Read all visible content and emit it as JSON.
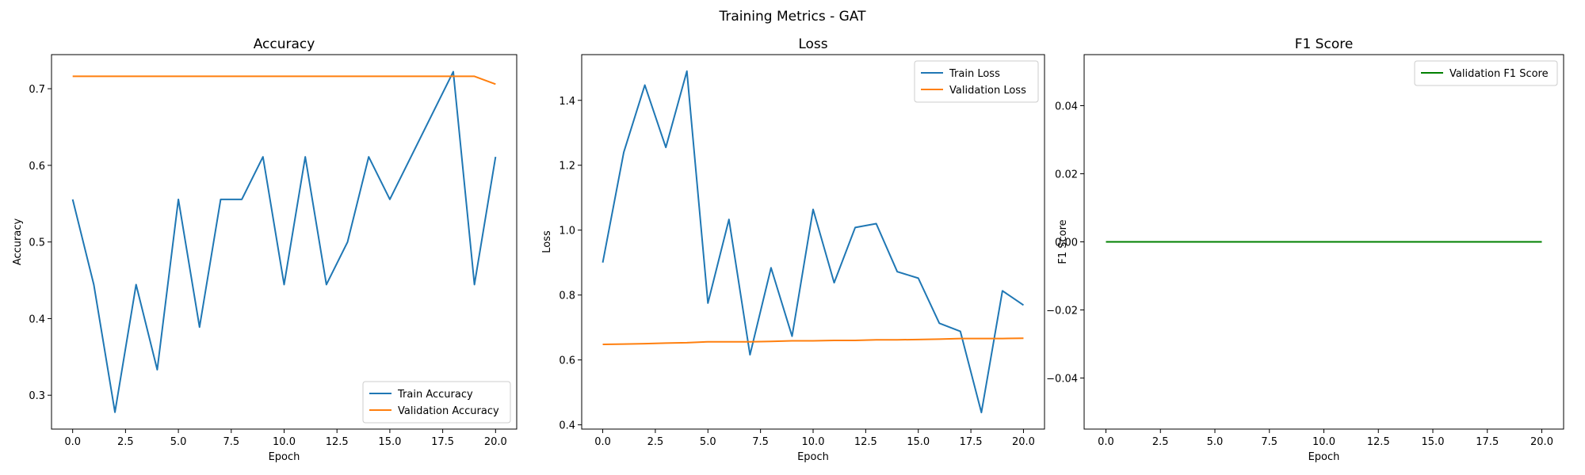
{
  "suptitle": "Training Metrics - GAT",
  "colors": {
    "train": "#1f77b4",
    "validation": "#ff7f0e",
    "f1": "#008000",
    "axes": "#000000",
    "legend_border": "#cccccc"
  },
  "chart_data": [
    {
      "type": "line",
      "title": "Accuracy",
      "xlabel": "Epoch",
      "ylabel": "Accuracy",
      "xlim": [
        -1,
        21
      ],
      "ylim": [
        0.2558,
        0.7445
      ],
      "xticks": [
        0.0,
        2.5,
        5.0,
        7.5,
        10.0,
        12.5,
        15.0,
        17.5,
        20.0
      ],
      "xtick_labels": [
        "0.0",
        "2.5",
        "5.0",
        "7.5",
        "10.0",
        "12.5",
        "15.0",
        "17.5",
        "20.0"
      ],
      "yticks": [
        0.3,
        0.4,
        0.5,
        0.6,
        0.7
      ],
      "ytick_labels": [
        "0.3",
        "0.4",
        "0.5",
        "0.6",
        "0.7"
      ],
      "grid": false,
      "legend_position": "lower right",
      "x": [
        0,
        1,
        2,
        3,
        4,
        5,
        6,
        7,
        8,
        9,
        10,
        11,
        12,
        13,
        14,
        15,
        16,
        17,
        18,
        19,
        20
      ],
      "series": [
        {
          "name": "Train Accuracy",
          "color": "#1f77b4",
          "values": [
            0.5556,
            0.4444,
            0.2778,
            0.4444,
            0.3333,
            0.5556,
            0.3889,
            0.5556,
            0.5556,
            0.6111,
            0.4444,
            0.6111,
            0.4444,
            0.5,
            0.6111,
            0.5556,
            0.6111,
            0.6667,
            0.7222,
            0.4444,
            0.6111
          ]
        },
        {
          "name": "Validation Accuracy",
          "color": "#ff7f0e",
          "values": [
            0.7162,
            0.7162,
            0.7162,
            0.7162,
            0.7162,
            0.7162,
            0.7162,
            0.7162,
            0.7162,
            0.7162,
            0.7162,
            0.7162,
            0.7162,
            0.7162,
            0.7162,
            0.7162,
            0.7162,
            0.7162,
            0.7162,
            0.7162,
            0.706
          ]
        }
      ]
    },
    {
      "type": "line",
      "title": "Loss",
      "xlabel": "Epoch",
      "ylabel": "Loss",
      "xlim": [
        -1,
        21
      ],
      "ylim": [
        0.3869,
        1.5409
      ],
      "xticks": [
        0.0,
        2.5,
        5.0,
        7.5,
        10.0,
        12.5,
        15.0,
        17.5,
        20.0
      ],
      "xtick_labels": [
        "0.0",
        "2.5",
        "5.0",
        "7.5",
        "10.0",
        "12.5",
        "15.0",
        "17.5",
        "20.0"
      ],
      "yticks": [
        0.4,
        0.6,
        0.8,
        1.0,
        1.2,
        1.4
      ],
      "ytick_labels": [
        "0.4",
        "0.6",
        "0.8",
        "1.0",
        "1.2",
        "1.4"
      ],
      "grid": false,
      "legend_position": "upper right",
      "x": [
        0,
        1,
        2,
        3,
        4,
        5,
        6,
        7,
        8,
        9,
        10,
        11,
        12,
        13,
        14,
        15,
        16,
        17,
        18,
        19,
        20
      ],
      "series": [
        {
          "name": "Train Loss",
          "color": "#1f77b4",
          "values": [
            0.9,
            1.24,
            1.447,
            1.255,
            1.49,
            0.775,
            1.033,
            0.616,
            0.884,
            0.673,
            1.064,
            0.838,
            1.008,
            1.02,
            0.872,
            0.852,
            0.713,
            0.688,
            0.438,
            0.813,
            0.769
          ]
        },
        {
          "name": "Validation Loss",
          "color": "#ff7f0e",
          "values": [
            0.648,
            0.649,
            0.65,
            0.652,
            0.653,
            0.656,
            0.656,
            0.656,
            0.657,
            0.659,
            0.659,
            0.66,
            0.66,
            0.662,
            0.662,
            0.663,
            0.664,
            0.666,
            0.666,
            0.666,
            0.667
          ]
        }
      ]
    },
    {
      "type": "line",
      "title": "F1 Score",
      "xlabel": "Epoch",
      "ylabel": "F1 Score",
      "xlim": [
        -1,
        21
      ],
      "ylim": [
        -0.055,
        0.055
      ],
      "xticks": [
        0.0,
        2.5,
        5.0,
        7.5,
        10.0,
        12.5,
        15.0,
        17.5,
        20.0
      ],
      "xtick_labels": [
        "0.0",
        "2.5",
        "5.0",
        "7.5",
        "10.0",
        "12.5",
        "15.0",
        "17.5",
        "20.0"
      ],
      "yticks": [
        -0.04,
        -0.02,
        0.0,
        0.02,
        0.04
      ],
      "ytick_labels": [
        "−0.04",
        "−0.02",
        "0.00",
        "0.02",
        "0.04"
      ],
      "grid": false,
      "legend_position": "upper right",
      "x": [
        0,
        1,
        2,
        3,
        4,
        5,
        6,
        7,
        8,
        9,
        10,
        11,
        12,
        13,
        14,
        15,
        16,
        17,
        18,
        19,
        20
      ],
      "series": [
        {
          "name": "Validation F1 Score",
          "color": "#008000",
          "values": [
            0,
            0,
            0,
            0,
            0,
            0,
            0,
            0,
            0,
            0,
            0,
            0,
            0,
            0,
            0,
            0,
            0,
            0,
            0,
            0,
            0
          ]
        }
      ]
    }
  ]
}
